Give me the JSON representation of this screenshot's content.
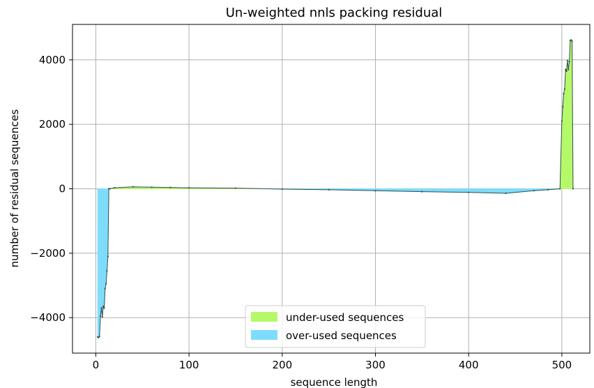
{
  "chart_data": {
    "type": "area",
    "title": "Un-weighted nnls packing residual",
    "xlabel": "sequence length",
    "ylabel": "number of residual sequences",
    "xlim": [
      -25,
      530
    ],
    "ylim": [
      -5100,
      5100
    ],
    "xticks": [
      0,
      100,
      200,
      300,
      400,
      500
    ],
    "yticks": [
      -4000,
      -2000,
      0,
      2000,
      4000
    ],
    "xtick_labels": [
      "0",
      "100",
      "200",
      "300",
      "400",
      "500"
    ],
    "ytick_labels": [
      "−4000",
      "−2000",
      "0",
      "2000",
      "4000"
    ],
    "grid": true,
    "legend_position": "bottom-center",
    "colors": {
      "under": "#b5f96a",
      "over": "#7fdcfb",
      "line": "#2f4f4f",
      "grid": "#b0b0b0"
    },
    "series": [
      {
        "name": "under-used sequences",
        "color": "#b5f96a"
      },
      {
        "name": "over-used sequences",
        "color": "#7fdcfb"
      }
    ],
    "x": [
      2,
      3,
      4,
      5,
      6,
      7,
      8,
      9,
      10,
      11,
      12,
      13,
      14,
      15,
      20,
      40,
      60,
      80,
      100,
      150,
      200,
      250,
      300,
      350,
      400,
      440,
      470,
      485,
      498,
      500,
      501,
      502,
      503,
      504,
      505,
      506,
      507,
      508,
      509,
      510,
      511,
      512
    ],
    "y": [
      -4600,
      -4620,
      -4580,
      -3950,
      -3700,
      -3980,
      -3650,
      -3700,
      -3100,
      -2950,
      -2550,
      -2100,
      0,
      0,
      30,
      60,
      50,
      40,
      30,
      20,
      -10,
      -30,
      -60,
      -90,
      -110,
      -140,
      -60,
      -30,
      0,
      2100,
      2550,
      2950,
      3100,
      3700,
      3650,
      3980,
      3700,
      3950,
      4600,
      4620,
      4580,
      0
    ]
  }
}
